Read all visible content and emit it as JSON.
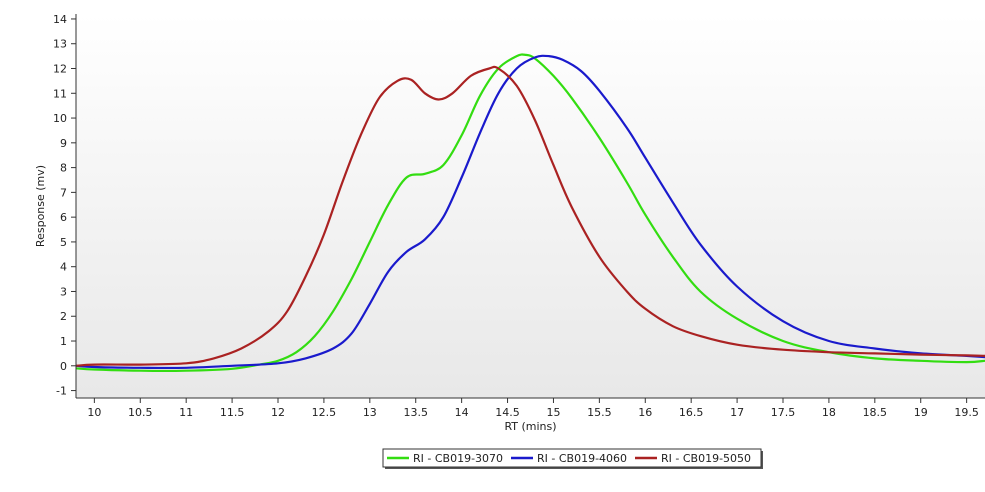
{
  "chart_data": {
    "type": "line",
    "title": "",
    "xlabel": "RT (mins)",
    "ylabel": "Response (mv)",
    "xlim": [
      9.8,
      19.7
    ],
    "ylim": [
      -1.3,
      14.2
    ],
    "x_ticks": [
      10,
      10.5,
      11,
      11.5,
      12,
      12.5,
      13,
      13.5,
      14,
      14.5,
      15,
      15.5,
      16,
      16.5,
      17,
      17.5,
      18,
      18.5,
      19,
      19.5
    ],
    "x_tick_labels": [
      "10",
      "10.5",
      "11",
      "11.5",
      "12",
      "12.5",
      "13",
      "13.5",
      "14",
      "14.5",
      "15",
      "15.5",
      "16",
      "16.5",
      "17",
      "17.5",
      "18",
      "18.5",
      "19",
      "19.5"
    ],
    "y_ticks": [
      -1,
      0,
      1,
      2,
      3,
      4,
      5,
      6,
      7,
      8,
      9,
      10,
      11,
      12,
      13,
      14
    ],
    "y_tick_labels": [
      "-1",
      "0",
      "1",
      "2",
      "3",
      "4",
      "5",
      "6",
      "7",
      "8",
      "9",
      "10",
      "11",
      "12",
      "13",
      "14"
    ],
    "grid": false,
    "background_gradient": [
      "#ffffff",
      "#e8e8e8"
    ],
    "legend_position": "bottom-center",
    "series": [
      {
        "name": "RI - CB019-3070",
        "color": "#33dd11",
        "x": [
          9.8,
          10.0,
          10.5,
          11.0,
          11.5,
          11.8,
          12.0,
          12.2,
          12.4,
          12.6,
          12.8,
          13.0,
          13.2,
          13.4,
          13.6,
          13.8,
          14.0,
          14.2,
          14.4,
          14.6,
          14.7,
          14.8,
          15.0,
          15.2,
          15.5,
          15.8,
          16.0,
          16.3,
          16.6,
          17.0,
          17.5,
          18.0,
          18.5,
          19.0,
          19.5,
          19.7
        ],
        "y": [
          -0.1,
          -0.15,
          -0.2,
          -0.2,
          -0.12,
          0.05,
          0.2,
          0.55,
          1.2,
          2.2,
          3.5,
          5.0,
          6.5,
          7.6,
          7.75,
          8.1,
          9.3,
          10.9,
          12.0,
          12.5,
          12.55,
          12.4,
          11.7,
          10.8,
          9.2,
          7.4,
          6.1,
          4.4,
          3.0,
          1.9,
          1.0,
          0.55,
          0.3,
          0.2,
          0.15,
          0.2
        ]
      },
      {
        "name": "RI - CB019-4060",
        "color": "#1a1acc",
        "x": [
          9.8,
          10.0,
          10.5,
          11.0,
          11.5,
          12.0,
          12.3,
          12.6,
          12.8,
          13.0,
          13.2,
          13.4,
          13.6,
          13.8,
          14.0,
          14.2,
          14.4,
          14.6,
          14.8,
          14.95,
          15.1,
          15.3,
          15.5,
          15.8,
          16.0,
          16.3,
          16.6,
          17.0,
          17.5,
          18.0,
          18.5,
          19.0,
          19.5,
          19.7
        ],
        "y": [
          0.0,
          -0.05,
          -0.08,
          -0.08,
          0.0,
          0.1,
          0.3,
          0.7,
          1.3,
          2.5,
          3.8,
          4.6,
          5.1,
          6.0,
          7.6,
          9.4,
          11.0,
          12.0,
          12.45,
          12.5,
          12.35,
          11.9,
          11.1,
          9.6,
          8.4,
          6.6,
          4.9,
          3.2,
          1.8,
          1.0,
          0.7,
          0.5,
          0.4,
          0.35
        ]
      },
      {
        "name": "RI - CB019-5050",
        "color": "#aa2222",
        "x": [
          9.8,
          10.0,
          10.5,
          11.0,
          11.3,
          11.6,
          11.9,
          12.1,
          12.3,
          12.5,
          12.7,
          12.9,
          13.1,
          13.3,
          13.45,
          13.6,
          13.75,
          13.9,
          14.1,
          14.3,
          14.4,
          14.6,
          14.8,
          15.0,
          15.2,
          15.5,
          15.8,
          16.0,
          16.3,
          16.6,
          17.0,
          17.5,
          18.0,
          18.5,
          19.0,
          19.5,
          19.7
        ],
        "y": [
          0.0,
          0.05,
          0.05,
          0.1,
          0.3,
          0.7,
          1.4,
          2.2,
          3.6,
          5.3,
          7.4,
          9.3,
          10.8,
          11.5,
          11.55,
          11.0,
          10.75,
          11.0,
          11.7,
          12.0,
          12.0,
          11.3,
          9.9,
          8.1,
          6.4,
          4.4,
          3.0,
          2.3,
          1.6,
          1.2,
          0.85,
          0.65,
          0.55,
          0.5,
          0.45,
          0.42,
          0.4
        ]
      }
    ]
  }
}
